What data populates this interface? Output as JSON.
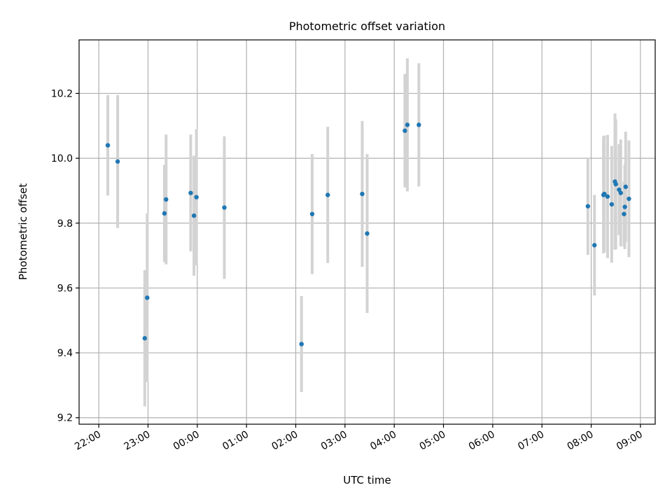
{
  "chart_data": {
    "type": "scatter",
    "title": "Photometric offset variation",
    "xlabel": "UTC time",
    "ylabel": "Photometric offset",
    "x_axis": "time",
    "x_unit": "hours since 22:00 UTC",
    "xlim": [
      "21:36",
      "09:18"
    ],
    "ylim": [
      9.18,
      10.365
    ],
    "grid": true,
    "legend": "none",
    "x_ticks": [
      "22:00",
      "23:00",
      "00:00",
      "01:00",
      "02:00",
      "03:00",
      "04:00",
      "05:00",
      "06:00",
      "07:00",
      "08:00",
      "09:00"
    ],
    "y_ticks": [
      9.2,
      9.4,
      9.6,
      9.8,
      10.0,
      10.2
    ],
    "y_tick_labels": [
      "9.2",
      "9.4",
      "9.6",
      "9.8",
      "10.0",
      "10.2"
    ],
    "colors": {
      "point": "#1f77b4",
      "errorbar": "#d3d3d3",
      "grid": "#b0b0b0"
    },
    "series": [
      {
        "x": [
          "22:11",
          "22:23",
          "22:56",
          "22:59",
          "23:20",
          "23:22",
          "23:52",
          "23:56",
          "23:59",
          "00:33",
          "02:07",
          "02:20",
          "02:39",
          "03:21",
          "03:27",
          "04:13",
          "04:16",
          "04:30",
          "07:56",
          "08:04",
          "08:15",
          "08:16",
          "08:20",
          "08:25",
          "08:29",
          "08:30",
          "08:34",
          "08:36",
          "08:40",
          "08:41",
          "08:42",
          "08:46"
        ],
        "y": [
          10.04,
          9.99,
          9.445,
          9.57,
          9.83,
          9.873,
          9.893,
          9.823,
          9.88,
          9.848,
          9.427,
          9.828,
          9.887,
          9.89,
          9.768,
          10.085,
          10.103,
          10.103,
          9.852,
          9.732,
          9.887,
          9.89,
          9.882,
          9.858,
          9.928,
          9.92,
          9.903,
          9.893,
          9.828,
          9.85,
          9.912,
          9.875
        ],
        "yerr": [
          0.155,
          0.205,
          0.21,
          0.26,
          0.15,
          0.2,
          0.18,
          0.185,
          0.21,
          0.22,
          0.148,
          0.185,
          0.21,
          0.225,
          0.245,
          0.175,
          0.205,
          0.19,
          0.15,
          0.155,
          0.18,
          0.18,
          0.19,
          0.18,
          0.21,
          0.2,
          0.14,
          0.165,
          0.1,
          0.13,
          0.17,
          0.18
        ]
      }
    ]
  }
}
